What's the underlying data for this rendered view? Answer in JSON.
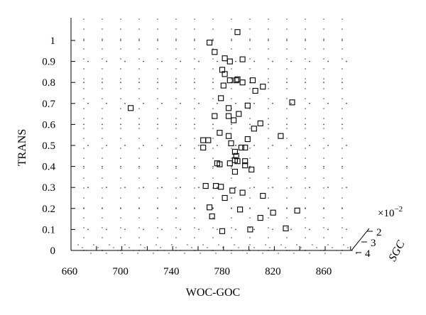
{
  "chart_data": {
    "type": "scatter",
    "title": "",
    "xlabel": "WOC-GOC",
    "ylabel": "TRANS",
    "zlabel": "SGC",
    "z_multiplier": "×10",
    "z_exponent": "−2",
    "xlim": [
      655,
      880
    ],
    "ylim": [
      0,
      1.05
    ],
    "x_ticks": [
      "660",
      "700",
      "740",
      "780",
      "820",
      "860"
    ],
    "y_ticks": [
      "0",
      "0.1",
      "0.2",
      "0.3",
      "0.4",
      "0.5",
      "0.6",
      "0.7",
      "0.8",
      "0.9",
      "1"
    ],
    "z_ticks": [
      "2",
      "3",
      "4"
    ],
    "grid": true,
    "grid_style": "dotted",
    "marker": "open-square",
    "series": [
      {
        "points": [
          {
            "x": 791,
            "y": 1.04
          },
          {
            "x": 769,
            "y": 0.99
          },
          {
            "x": 773,
            "y": 0.945
          },
          {
            "x": 781,
            "y": 0.915
          },
          {
            "x": 795,
            "y": 0.91
          },
          {
            "x": 785,
            "y": 0.9
          },
          {
            "x": 779,
            "y": 0.86
          },
          {
            "x": 781,
            "y": 0.84
          },
          {
            "x": 791,
            "y": 0.815
          },
          {
            "x": 803,
            "y": 0.81
          },
          {
            "x": 790,
            "y": 0.81
          },
          {
            "x": 785,
            "y": 0.81
          },
          {
            "x": 795,
            "y": 0.8
          },
          {
            "x": 780,
            "y": 0.785
          },
          {
            "x": 811,
            "y": 0.78
          },
          {
            "x": 805,
            "y": 0.76
          },
          {
            "x": 778,
            "y": 0.725
          },
          {
            "x": 834,
            "y": 0.705
          },
          {
            "x": 799,
            "y": 0.69
          },
          {
            "x": 707,
            "y": 0.678
          },
          {
            "x": 784,
            "y": 0.678
          },
          {
            "x": 792,
            "y": 0.65
          },
          {
            "x": 773,
            "y": 0.64
          },
          {
            "x": 784,
            "y": 0.64
          },
          {
            "x": 788,
            "y": 0.62
          },
          {
            "x": 809,
            "y": 0.605
          },
          {
            "x": 804,
            "y": 0.58
          },
          {
            "x": 777,
            "y": 0.56
          },
          {
            "x": 825,
            "y": 0.545
          },
          {
            "x": 784,
            "y": 0.545
          },
          {
            "x": 799,
            "y": 0.53
          },
          {
            "x": 764,
            "y": 0.525
          },
          {
            "x": 768,
            "y": 0.525
          },
          {
            "x": 786,
            "y": 0.51
          },
          {
            "x": 764,
            "y": 0.49
          },
          {
            "x": 794,
            "y": 0.49
          },
          {
            "x": 797,
            "y": 0.49
          },
          {
            "x": 789,
            "y": 0.47
          },
          {
            "x": 790,
            "y": 0.45
          },
          {
            "x": 789,
            "y": 0.43
          },
          {
            "x": 791,
            "y": 0.425
          },
          {
            "x": 797,
            "y": 0.425
          },
          {
            "x": 775,
            "y": 0.415
          },
          {
            "x": 785,
            "y": 0.415
          },
          {
            "x": 777,
            "y": 0.41
          },
          {
            "x": 797,
            "y": 0.405
          },
          {
            "x": 802,
            "y": 0.385
          },
          {
            "x": 789,
            "y": 0.375
          },
          {
            "x": 766,
            "y": 0.307
          },
          {
            "x": 774,
            "y": 0.307
          },
          {
            "x": 778,
            "y": 0.303
          },
          {
            "x": 787,
            "y": 0.285
          },
          {
            "x": 795,
            "y": 0.275
          },
          {
            "x": 811,
            "y": 0.26
          },
          {
            "x": 781,
            "y": 0.25
          },
          {
            "x": 769,
            "y": 0.205
          },
          {
            "x": 793,
            "y": 0.195
          },
          {
            "x": 838,
            "y": 0.19
          },
          {
            "x": 819,
            "y": 0.18
          },
          {
            "x": 771,
            "y": 0.162
          },
          {
            "x": 809,
            "y": 0.155
          },
          {
            "x": 829,
            "y": 0.105
          },
          {
            "x": 801,
            "y": 0.1
          },
          {
            "x": 779,
            "y": 0.092
          }
        ]
      }
    ]
  }
}
